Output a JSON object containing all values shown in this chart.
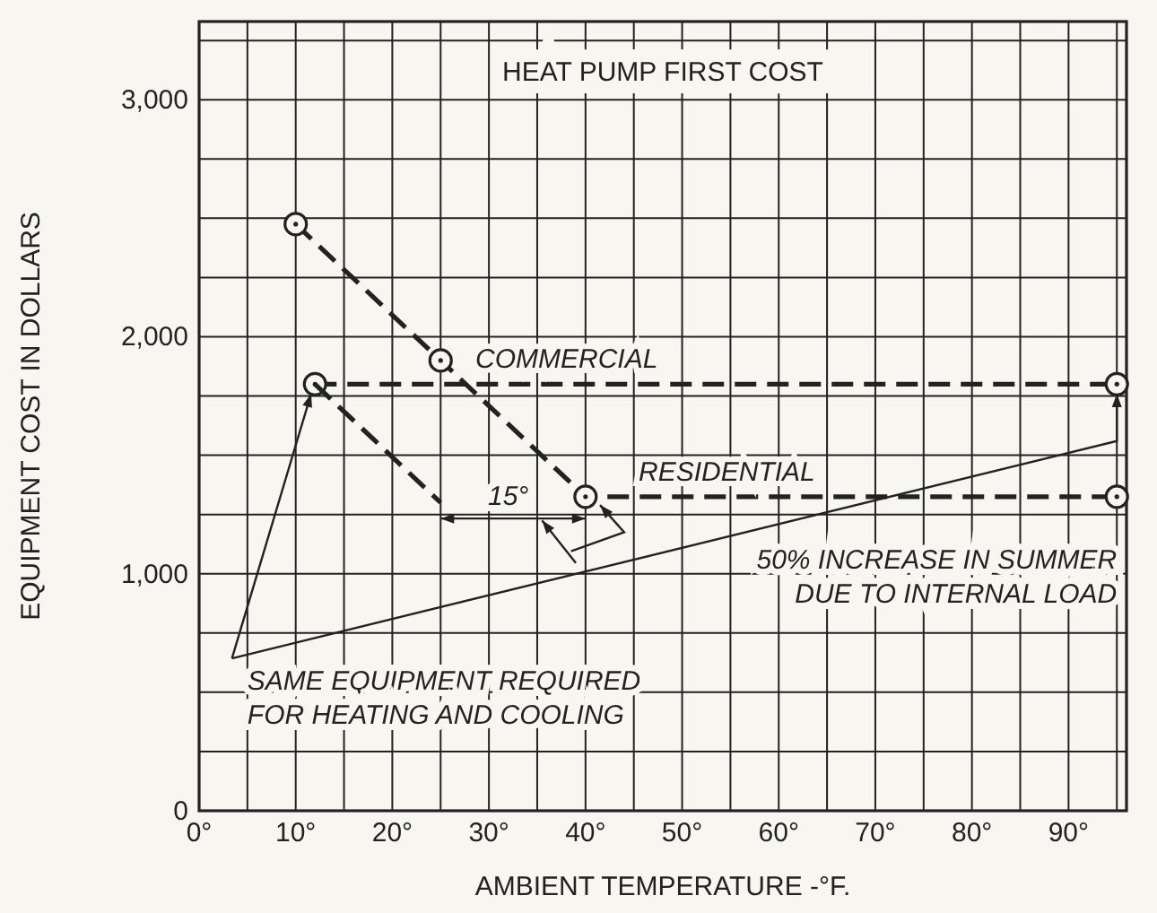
{
  "chart_data": {
    "type": "line",
    "title": "HEAT PUMP FIRST COST",
    "xlabel": "AMBIENT TEMPERATURE -°F.",
    "ylabel": "EQUIPMENT COST IN DOLLARS",
    "xlim": [
      0,
      96
    ],
    "ylim": [
      0,
      3330
    ],
    "xticks": [
      {
        "value": 0,
        "label": "0°"
      },
      {
        "value": 5,
        "label": null
      },
      {
        "value": 10,
        "label": "10°"
      },
      {
        "value": 15,
        "label": null
      },
      {
        "value": 20,
        "label": "20°"
      },
      {
        "value": 25,
        "label": null
      },
      {
        "value": 30,
        "label": "30°"
      },
      {
        "value": 35,
        "label": null
      },
      {
        "value": 40,
        "label": "40°"
      },
      {
        "value": 45,
        "label": null
      },
      {
        "value": 50,
        "label": "50°"
      },
      {
        "value": 55,
        "label": null
      },
      {
        "value": 60,
        "label": "60°"
      },
      {
        "value": 65,
        "label": null
      },
      {
        "value": 70,
        "label": "70°"
      },
      {
        "value": 75,
        "label": null
      },
      {
        "value": 80,
        "label": "80°"
      },
      {
        "value": 85,
        "label": null
      },
      {
        "value": 90,
        "label": "90°"
      },
      {
        "value": 95,
        "label": null
      }
    ],
    "yticks": [
      {
        "value": 0,
        "label": "0"
      },
      {
        "value": 250,
        "label": null
      },
      {
        "value": 500,
        "label": null
      },
      {
        "value": 750,
        "label": null
      },
      {
        "value": 1000,
        "label": "1,000"
      },
      {
        "value": 1250,
        "label": null
      },
      {
        "value": 1500,
        "label": null
      },
      {
        "value": 1750,
        "label": null
      },
      {
        "value": 2000,
        "label": "2,000"
      },
      {
        "value": 2250,
        "label": null
      },
      {
        "value": 2500,
        "label": null
      },
      {
        "value": 2750,
        "label": null
      },
      {
        "value": 3000,
        "label": "3,000"
      },
      {
        "value": 3250,
        "label": null
      }
    ],
    "grid": true,
    "line_style": "dashed",
    "series": [
      {
        "name": "RESIDENTIAL",
        "color": "#222222",
        "marker": "circle",
        "x": [
          10,
          25,
          40,
          95
        ],
        "values": [
          2475,
          1900,
          1325,
          1325
        ]
      },
      {
        "name": "COMMERCIAL",
        "color": "#222222",
        "marker": "circle",
        "x": [
          12,
          95
        ],
        "values": [
          1800,
          1800
        ]
      },
      {
        "color": "#222222",
        "marker": "none",
        "x": [
          12,
          25
        ],
        "values": [
          1800,
          1300
        ]
      }
    ],
    "annotations": [
      "15°",
      "50% INCREASE IN SUMMER\nDUE TO INTERNAL LOAD",
      {
        "text": "SAME EQUIPMENT REQUIRED\nFOR HEATING AND COOLING",
        "x": 12,
        "y": 1800
      }
    ]
  }
}
